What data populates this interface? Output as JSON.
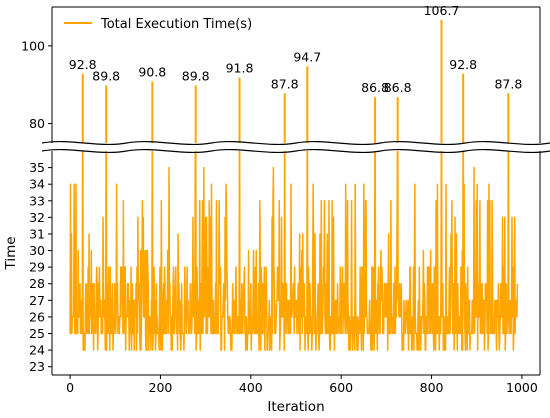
{
  "chart_data": {
    "type": "line",
    "xlabel": "Iteration",
    "ylabel": "Time",
    "broken_axis": true,
    "upper_ylim": [
      75,
      110
    ],
    "lower_ylim": [
      22.5,
      36
    ],
    "xlim": [
      -40,
      1040
    ],
    "x_ticks": [
      0,
      200,
      400,
      600,
      800,
      1000
    ],
    "upper_y_ticks": [
      80,
      100
    ],
    "lower_y_ticks": [
      23,
      24,
      25,
      26,
      27,
      28,
      29,
      30,
      31,
      32,
      33,
      34,
      35
    ],
    "legend": {
      "placement": "top-left"
    },
    "series": [
      {
        "name": "Total Execution Time(s)",
        "color": "#ffa500",
        "x_range": [
          0,
          990
        ],
        "y_typical_range": [
          23,
          35
        ],
        "peaks": [
          {
            "x": 28,
            "y": 92.8,
            "label": "92.8"
          },
          {
            "x": 80,
            "y": 89.8,
            "label": "89.8"
          },
          {
            "x": 182,
            "y": 90.8,
            "label": "90.8"
          },
          {
            "x": 278,
            "y": 89.8,
            "label": "89.8"
          },
          {
            "x": 375,
            "y": 91.8,
            "label": "91.8"
          },
          {
            "x": 475,
            "y": 87.8,
            "label": "87.8"
          },
          {
            "x": 525,
            "y": 94.7,
            "label": "94.7"
          },
          {
            "x": 675,
            "y": 86.8,
            "label": "86.8"
          },
          {
            "x": 725,
            "y": 86.8,
            "label": "86.8"
          },
          {
            "x": 822,
            "y": 106.7,
            "label": "106.7"
          },
          {
            "x": 870,
            "y": 92.8,
            "label": "92.8"
          },
          {
            "x": 970,
            "y": 87.8,
            "label": "87.8"
          }
        ]
      }
    ]
  }
}
